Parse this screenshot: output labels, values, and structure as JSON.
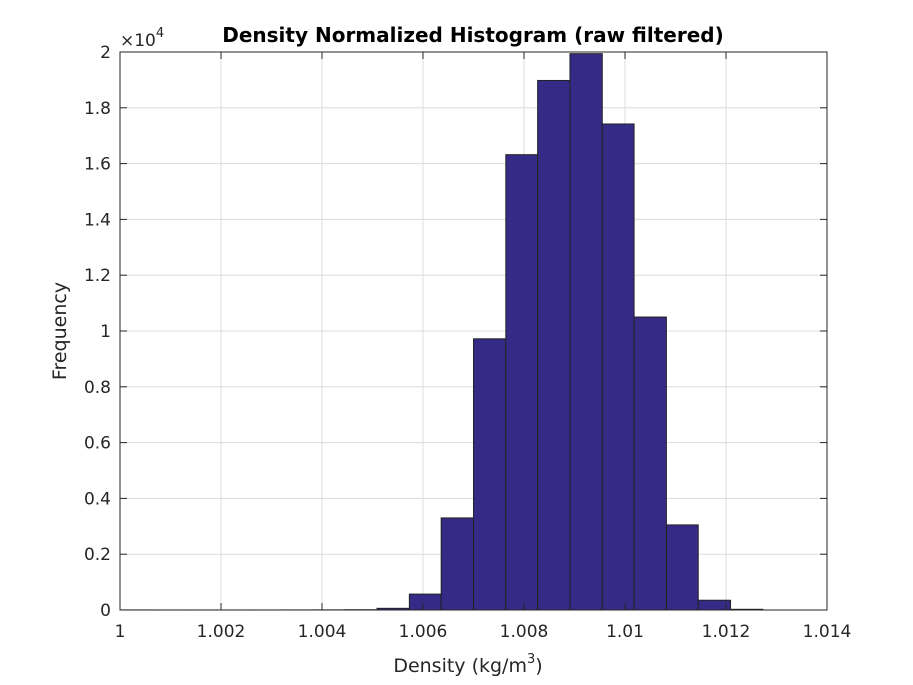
{
  "chart_data": {
    "type": "bar",
    "title": "Density Normalized  Histogram (raw  filtered)",
    "xlabel": "Density (kg/m",
    "xlabel_sup": "3",
    "xlabel_end": ")",
    "ylabel": "Frequency",
    "y_exponent_base": "×10",
    "y_exponent_power": "4",
    "xlim": [
      1.0,
      1.014
    ],
    "ylim": [
      0,
      20000
    ],
    "grid": true,
    "bar_color": "#362a87",
    "edge_color": "#222222",
    "x_ticks": [
      1.0,
      1.002,
      1.004,
      1.006,
      1.008,
      1.01,
      1.012,
      1.014
    ],
    "x_tick_labels": [
      "1",
      "1.002",
      "1.004",
      "1.006",
      "1.008",
      "1.01",
      "1.012",
      "1.014"
    ],
    "y_ticks": [
      0,
      2000,
      4000,
      6000,
      8000,
      10000,
      12000,
      14000,
      16000,
      18000,
      20000
    ],
    "y_tick_labels": [
      "0",
      "0.2",
      "0.4",
      "0.6",
      "0.8",
      "1",
      "1.2",
      "1.4",
      "1.6",
      "1.8",
      "2"
    ],
    "bins": [
      {
        "start": 1.0,
        "end": 1.00064,
        "count": 3
      },
      {
        "start": 1.00064,
        "end": 1.00127,
        "count": 2
      },
      {
        "start": 1.00127,
        "end": 1.00191,
        "count": 2
      },
      {
        "start": 1.00191,
        "end": 1.00255,
        "count": 2
      },
      {
        "start": 1.00255,
        "end": 1.00318,
        "count": 2
      },
      {
        "start": 1.00318,
        "end": 1.00382,
        "count": 3
      },
      {
        "start": 1.00382,
        "end": 1.00445,
        "count": 5
      },
      {
        "start": 1.00445,
        "end": 1.00509,
        "count": 10
      },
      {
        "start": 1.00509,
        "end": 1.00573,
        "count": 60
      },
      {
        "start": 1.00573,
        "end": 1.00636,
        "count": 570
      },
      {
        "start": 1.00636,
        "end": 1.007,
        "count": 3300
      },
      {
        "start": 1.007,
        "end": 1.00764,
        "count": 9720
      },
      {
        "start": 1.00764,
        "end": 1.00827,
        "count": 16320
      },
      {
        "start": 1.00827,
        "end": 1.00891,
        "count": 18980
      },
      {
        "start": 1.00891,
        "end": 1.00955,
        "count": 19940
      },
      {
        "start": 1.00955,
        "end": 1.01018,
        "count": 17420
      },
      {
        "start": 1.01018,
        "end": 1.01082,
        "count": 10500
      },
      {
        "start": 1.01082,
        "end": 1.01145,
        "count": 3050
      },
      {
        "start": 1.01145,
        "end": 1.01209,
        "count": 350
      },
      {
        "start": 1.01209,
        "end": 1.01273,
        "count": 25
      }
    ]
  }
}
